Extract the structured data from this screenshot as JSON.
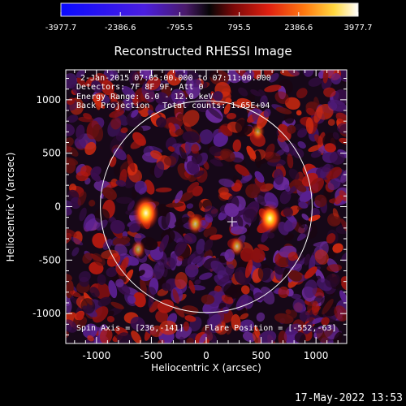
{
  "chart_data": {
    "type": "heatmap",
    "title": "Reconstructed RHESSI Image",
    "xlabel": "Heliocentric X (arcsec)",
    "ylabel": "Heliocentric Y (arcsec)",
    "xlim": [
      -1280,
      1280
    ],
    "ylim": [
      -1280,
      1280
    ],
    "x_ticks": [
      -1000,
      -500,
      0,
      500,
      1000
    ],
    "y_ticks": [
      -1000,
      -500,
      0,
      500,
      1000
    ],
    "x_tick_labels": [
      "-1000",
      "-500",
      "0",
      "500",
      "1000"
    ],
    "y_tick_labels": [
      "-1000",
      "-500",
      "0",
      "500",
      "1000"
    ],
    "colorbar": {
      "min": -3977.7,
      "max": 3977.7,
      "tick_values": [
        -3977.7,
        -2386.6,
        -795.5,
        795.5,
        2386.6,
        3977.7
      ],
      "tick_labels": [
        "-3977.7",
        "-2386.6",
        "-795.5",
        "795.5",
        "2386.6",
        "3977.7"
      ]
    },
    "annotations": {
      "time_range": "2-Jan-2015 07:05:00.000 to 07:11:00.000",
      "detectors": "Detectors: 7F 8F 9F, Att 0",
      "energy_range": "Energy Range: 6.0 - 12.0 keV",
      "method": "Back Projection",
      "total_counts": "Total counts: 1.65E+04",
      "spin_axis": "Spin Axis = [236,-141]",
      "flare_position": "Flare Position = [-552,-63]"
    },
    "solar_limb": {
      "center": [
        0,
        0
      ],
      "radius_arcsec": 965
    },
    "spin_axis_marker": [
      236,
      -141
    ],
    "bright_sources": [
      {
        "x": -550,
        "y": -60,
        "intensity": 3977.7
      },
      {
        "x": 580,
        "y": -110,
        "intensity": 3200
      },
      {
        "x": -100,
        "y": -160,
        "intensity": 1500
      },
      {
        "x": 280,
        "y": -370,
        "intensity": 1300
      },
      {
        "x": -620,
        "y": -400,
        "intensity": 1100
      },
      {
        "x": 470,
        "y": 700,
        "intensity": 1000
      }
    ]
  },
  "footer": {
    "timestamp": "17-May-2022 13:53"
  }
}
